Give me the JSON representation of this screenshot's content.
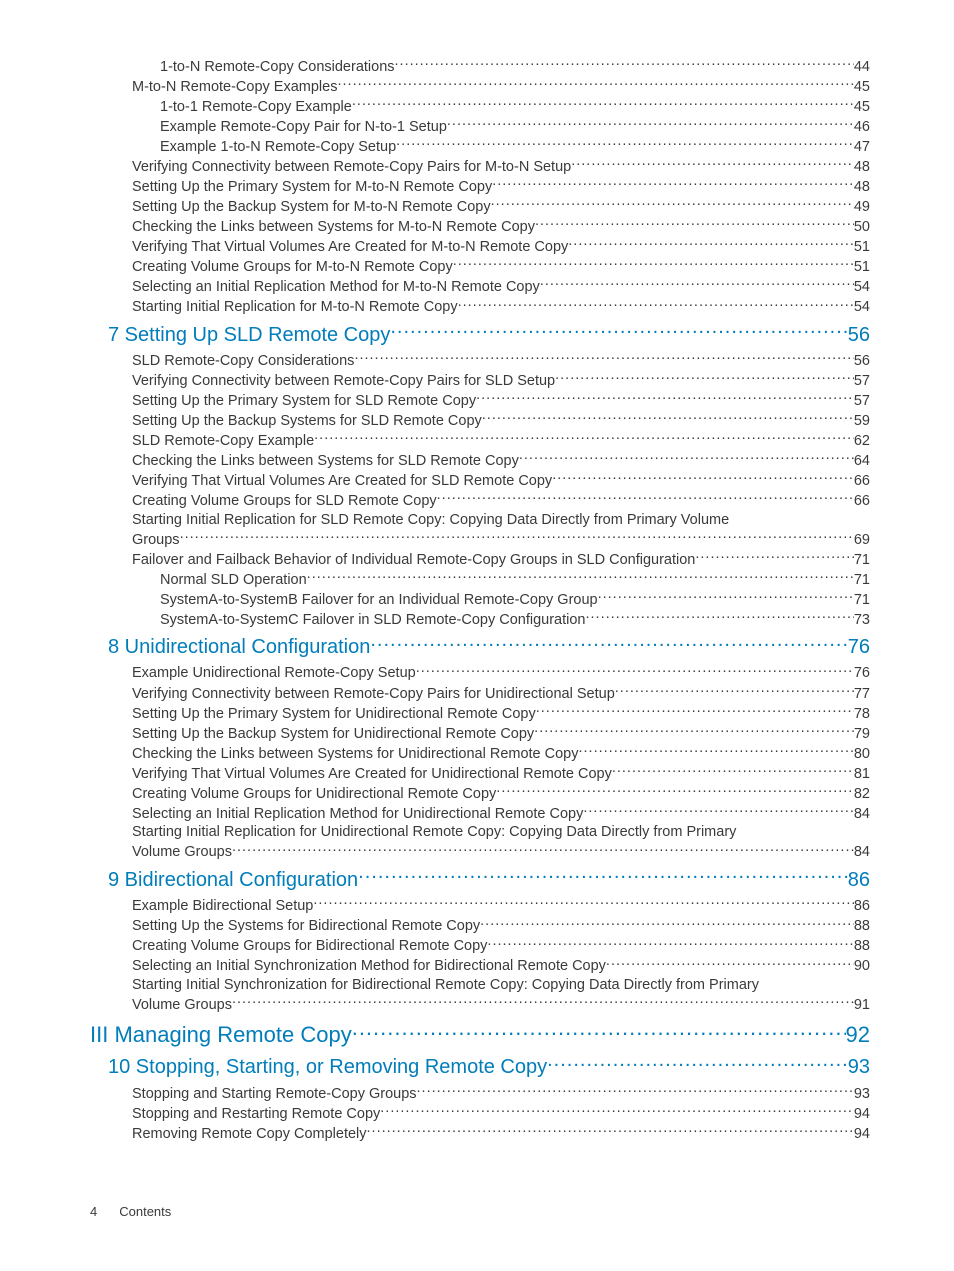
{
  "footer": {
    "page_number": "4",
    "label": "Contents"
  },
  "colors": {
    "link": "#007dba",
    "text": "#3a3a3a",
    "background": "#ffffff"
  },
  "entries": [
    {
      "level": "sub",
      "label": "1-to-N Remote-Copy Considerations",
      "page": "44"
    },
    {
      "level": "sec",
      "label": "M-to-N Remote-Copy Examples",
      "page": "45"
    },
    {
      "level": "sub",
      "label": "1-to-1 Remote-Copy Example",
      "page": "45"
    },
    {
      "level": "sub",
      "label": "Example Remote-Copy Pair for N-to-1 Setup",
      "page": "46"
    },
    {
      "level": "sub",
      "label": "Example 1-to-N Remote-Copy Setup",
      "page": "47"
    },
    {
      "level": "sec",
      "label": "Verifying Connectivity between Remote-Copy Pairs for M-to-N Setup",
      "page": "48"
    },
    {
      "level": "sec",
      "label": "Setting Up the Primary System for M-to-N Remote Copy",
      "page": "48"
    },
    {
      "level": "sec",
      "label": "Setting Up the Backup System for M-to-N Remote Copy",
      "page": "49"
    },
    {
      "level": "sec",
      "label": "Checking the Links between Systems for M-to-N Remote Copy",
      "page": "50"
    },
    {
      "level": "sec",
      "label": "Verifying That Virtual Volumes Are Created for M-to-N Remote Copy",
      "page": "51"
    },
    {
      "level": "sec",
      "label": "Creating Volume Groups for M-to-N Remote Copy",
      "page": "51"
    },
    {
      "level": "sec",
      "label": "Selecting an Initial Replication Method for M-to-N Remote Copy",
      "page": "54"
    },
    {
      "level": "sec",
      "label": "Starting Initial Replication for M-to-N Remote Copy",
      "page": "54"
    },
    {
      "level": "chapter",
      "label": "7 Setting Up SLD Remote Copy",
      "page": "56"
    },
    {
      "level": "sec",
      "label": "SLD Remote-Copy Considerations",
      "page": "56"
    },
    {
      "level": "sec",
      "label": "Verifying Connectivity between Remote-Copy Pairs for SLD Setup",
      "page": "57"
    },
    {
      "level": "sec",
      "label": "Setting Up the Primary System for SLD Remote Copy",
      "page": "57"
    },
    {
      "level": "sec",
      "label": "Setting Up the Backup Systems for SLD Remote Copy",
      "page": "59"
    },
    {
      "level": "sec",
      "label": "SLD Remote-Copy Example",
      "page": "62"
    },
    {
      "level": "sec",
      "label": "Checking the Links between Systems for SLD Remote Copy",
      "page": "64"
    },
    {
      "level": "sec",
      "label": "Verifying That Virtual Volumes Are Created for SLD Remote Copy",
      "page": "66"
    },
    {
      "level": "sec",
      "label": "Creating Volume Groups for SLD Remote Copy",
      "page": "66"
    },
    {
      "level": "sec",
      "label": "Starting Initial Replication for SLD Remote Copy: Copying Data Directly from Primary Volume",
      "noline": true
    },
    {
      "level": "sec",
      "label": "Groups",
      "page": "69"
    },
    {
      "level": "sec",
      "label": "Failover and Failback Behavior of Individual Remote-Copy Groups in SLD Configuration",
      "page": "71"
    },
    {
      "level": "sub",
      "label": "Normal SLD Operation",
      "page": "71"
    },
    {
      "level": "sub",
      "label": "SystemA-to-SystemB Failover for an Individual Remote-Copy Group",
      "page": "71"
    },
    {
      "level": "sub",
      "label": "SystemA-to-SystemC Failover in SLD Remote-Copy Configuration",
      "page": "73"
    },
    {
      "level": "chapter",
      "label": "8 Unidirectional Configuration",
      "page": "76"
    },
    {
      "level": "sec",
      "label": "Example Unidirectional Remote-Copy Setup",
      "page": "76"
    },
    {
      "level": "sec",
      "label": "Verifying Connectivity between Remote-Copy Pairs for Unidirectional Setup",
      "page": "77"
    },
    {
      "level": "sec",
      "label": "Setting Up the Primary System for Unidirectional Remote Copy",
      "page": "78"
    },
    {
      "level": "sec",
      "label": "Setting Up the Backup System for Unidirectional Remote Copy",
      "page": "79"
    },
    {
      "level": "sec",
      "label": "Checking the Links between Systems for Unidirectional Remote Copy",
      "page": "80"
    },
    {
      "level": "sec",
      "label": "Verifying That Virtual Volumes Are Created for Unidirectional Remote Copy",
      "page": "81"
    },
    {
      "level": "sec",
      "label": "Creating Volume Groups for Unidirectional Remote Copy",
      "page": "82"
    },
    {
      "level": "sec",
      "label": "Selecting an Initial Replication Method for Unidirectional Remote Copy",
      "page": "84"
    },
    {
      "level": "sec",
      "label": "Starting Initial Replication for Unidirectional Remote Copy: Copying Data Directly from Primary",
      "noline": true
    },
    {
      "level": "sec",
      "label": "Volume Groups",
      "page": "84"
    },
    {
      "level": "chapter",
      "label": "9 Bidirectional Configuration",
      "page": "86"
    },
    {
      "level": "sec",
      "label": "Example Bidirectional Setup",
      "page": "86"
    },
    {
      "level": "sec",
      "label": "Setting Up the Systems for Bidirectional Remote Copy",
      "page": "88"
    },
    {
      "level": "sec",
      "label": "Creating Volume Groups for Bidirectional Remote Copy",
      "page": "88"
    },
    {
      "level": "sec",
      "label": "Selecting an Initial Synchronization Method for Bidirectional Remote Copy",
      "page": "90"
    },
    {
      "level": "sec",
      "label": "Starting Initial Synchronization for Bidirectional Remote Copy: Copying Data Directly from Primary",
      "noline": true
    },
    {
      "level": "sec",
      "label": "Volume Groups",
      "page": "91"
    },
    {
      "level": "part",
      "label": "III Managing Remote Copy",
      "page": "92"
    },
    {
      "level": "chapter",
      "label": "10 Stopping, Starting, or Removing Remote Copy",
      "page": "93"
    },
    {
      "level": "sec",
      "label": "Stopping and Starting Remote-Copy Groups",
      "page": "93"
    },
    {
      "level": "sec",
      "label": "Stopping and Restarting Remote Copy",
      "page": "94"
    },
    {
      "level": "sec",
      "label": "Removing Remote Copy Completely",
      "page": "94"
    }
  ]
}
